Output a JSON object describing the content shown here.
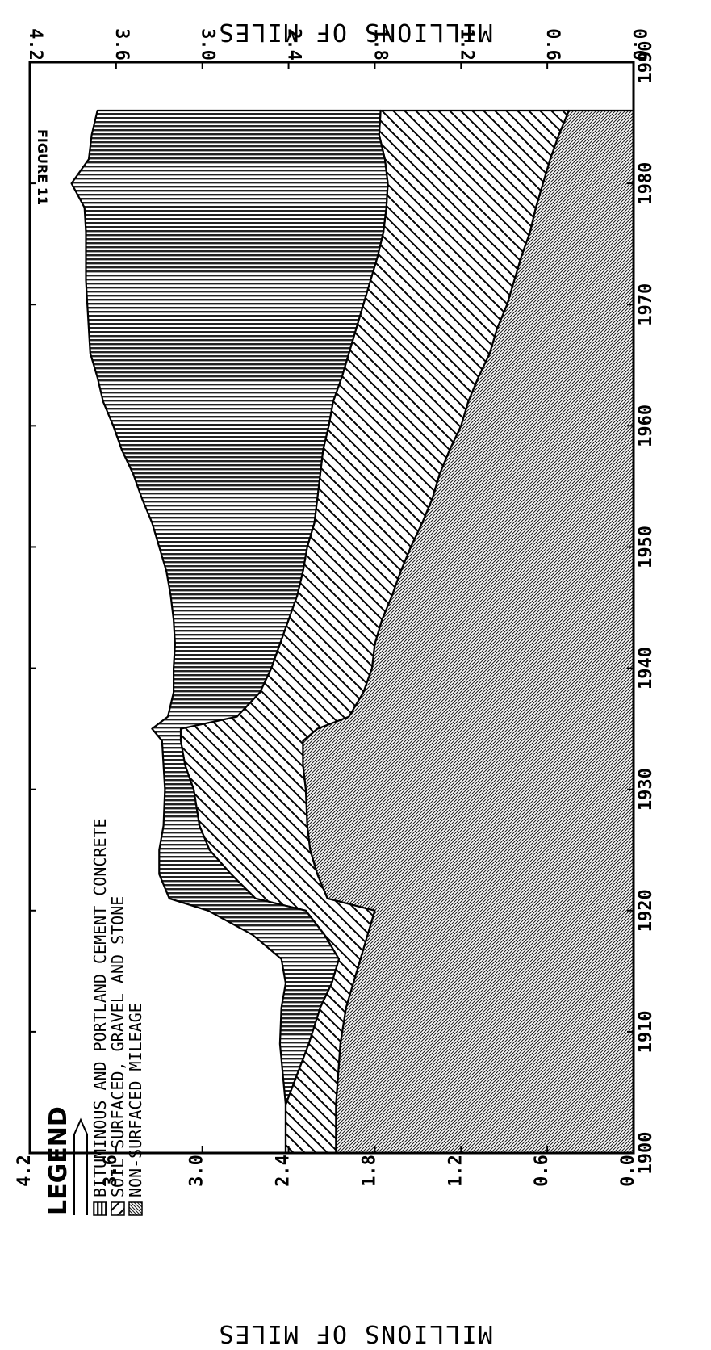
{
  "chart_data": {
    "type": "area",
    "stacked": true,
    "orientation": "rotated-90",
    "title": "",
    "figure_label": "FIGURE 11",
    "ylabel_top": "MILLIONS OF MILES",
    "ylabel_bottom": "MILLIONS OF MILES",
    "xlim": [
      1900,
      1990
    ],
    "ylim": [
      0,
      4.2
    ],
    "x_ticks": [
      "1900",
      "1910",
      "1920",
      "1930",
      "1940",
      "1950",
      "1960",
      "1970",
      "1980",
      "1990"
    ],
    "y_ticks": [
      "0.0",
      "0.6",
      "1.2",
      "1.8",
      "2.4",
      "3.0",
      "3.6",
      "4.2"
    ],
    "legend": {
      "title": "LEGEND",
      "placement": "top-left",
      "entries": [
        "BITUMINOUS AND PORTLAND CEMENT CONCRETE",
        "SOIL SURFACED, GRAVEL AND STONE",
        "NON-SURFACED MILEAGE"
      ]
    },
    "x": [
      1900,
      1904,
      1909,
      1912,
      1914,
      1916,
      1918,
      1920,
      1921,
      1923,
      1925,
      1927,
      1930,
      1932,
      1934,
      1935,
      1936,
      1938,
      1940,
      1942,
      1944,
      1946,
      1948,
      1950,
      1952,
      1954,
      1956,
      1958,
      1960,
      1962,
      1964,
      1966,
      1968,
      1970,
      1972,
      1974,
      1976,
      1978,
      1980,
      1982,
      1984,
      1986
    ],
    "series": [
      {
        "values": [
          2.07,
          2.07,
          2.04,
          2.0,
          1.95,
          1.9,
          1.85,
          1.8,
          2.13,
          2.2,
          2.25,
          2.27,
          2.28,
          2.3,
          2.3,
          2.2,
          1.98,
          1.88,
          1.82,
          1.8,
          1.75,
          1.68,
          1.62,
          1.55,
          1.47,
          1.4,
          1.35,
          1.28,
          1.2,
          1.15,
          1.08,
          1.0,
          0.95,
          0.88,
          0.83,
          0.78,
          0.72,
          0.68,
          0.63,
          0.58,
          0.52,
          0.45
        ]
      },
      {
        "values": [
          0.35,
          0.35,
          0.22,
          0.18,
          0.15,
          0.15,
          0.3,
          0.48,
          0.5,
          0.6,
          0.7,
          0.75,
          0.78,
          0.82,
          0.85,
          0.95,
          0.78,
          0.72,
          0.7,
          0.66,
          0.65,
          0.66,
          0.68,
          0.72,
          0.75,
          0.8,
          0.83,
          0.88,
          0.92,
          0.94,
          0.95,
          0.98,
          0.98,
          1.0,
          1.0,
          1.0,
          1.02,
          1.04,
          1.08,
          1.15,
          1.25,
          1.31
        ]
      },
      {
        "values": [
          0.0,
          0.0,
          0.2,
          0.27,
          0.32,
          0.4,
          0.5,
          0.68,
          0.6,
          0.5,
          0.35,
          0.25,
          0.2,
          0.15,
          0.13,
          0.2,
          0.48,
          0.6,
          0.68,
          0.73,
          0.8,
          0.88,
          0.95,
          1.03,
          1.13,
          1.22,
          1.3,
          1.4,
          1.5,
          1.6,
          1.7,
          1.8,
          1.86,
          1.92,
          1.98,
          2.03,
          2.07,
          2.1,
          2.2,
          2.06,
          2.0,
          1.97
        ]
      }
    ]
  }
}
